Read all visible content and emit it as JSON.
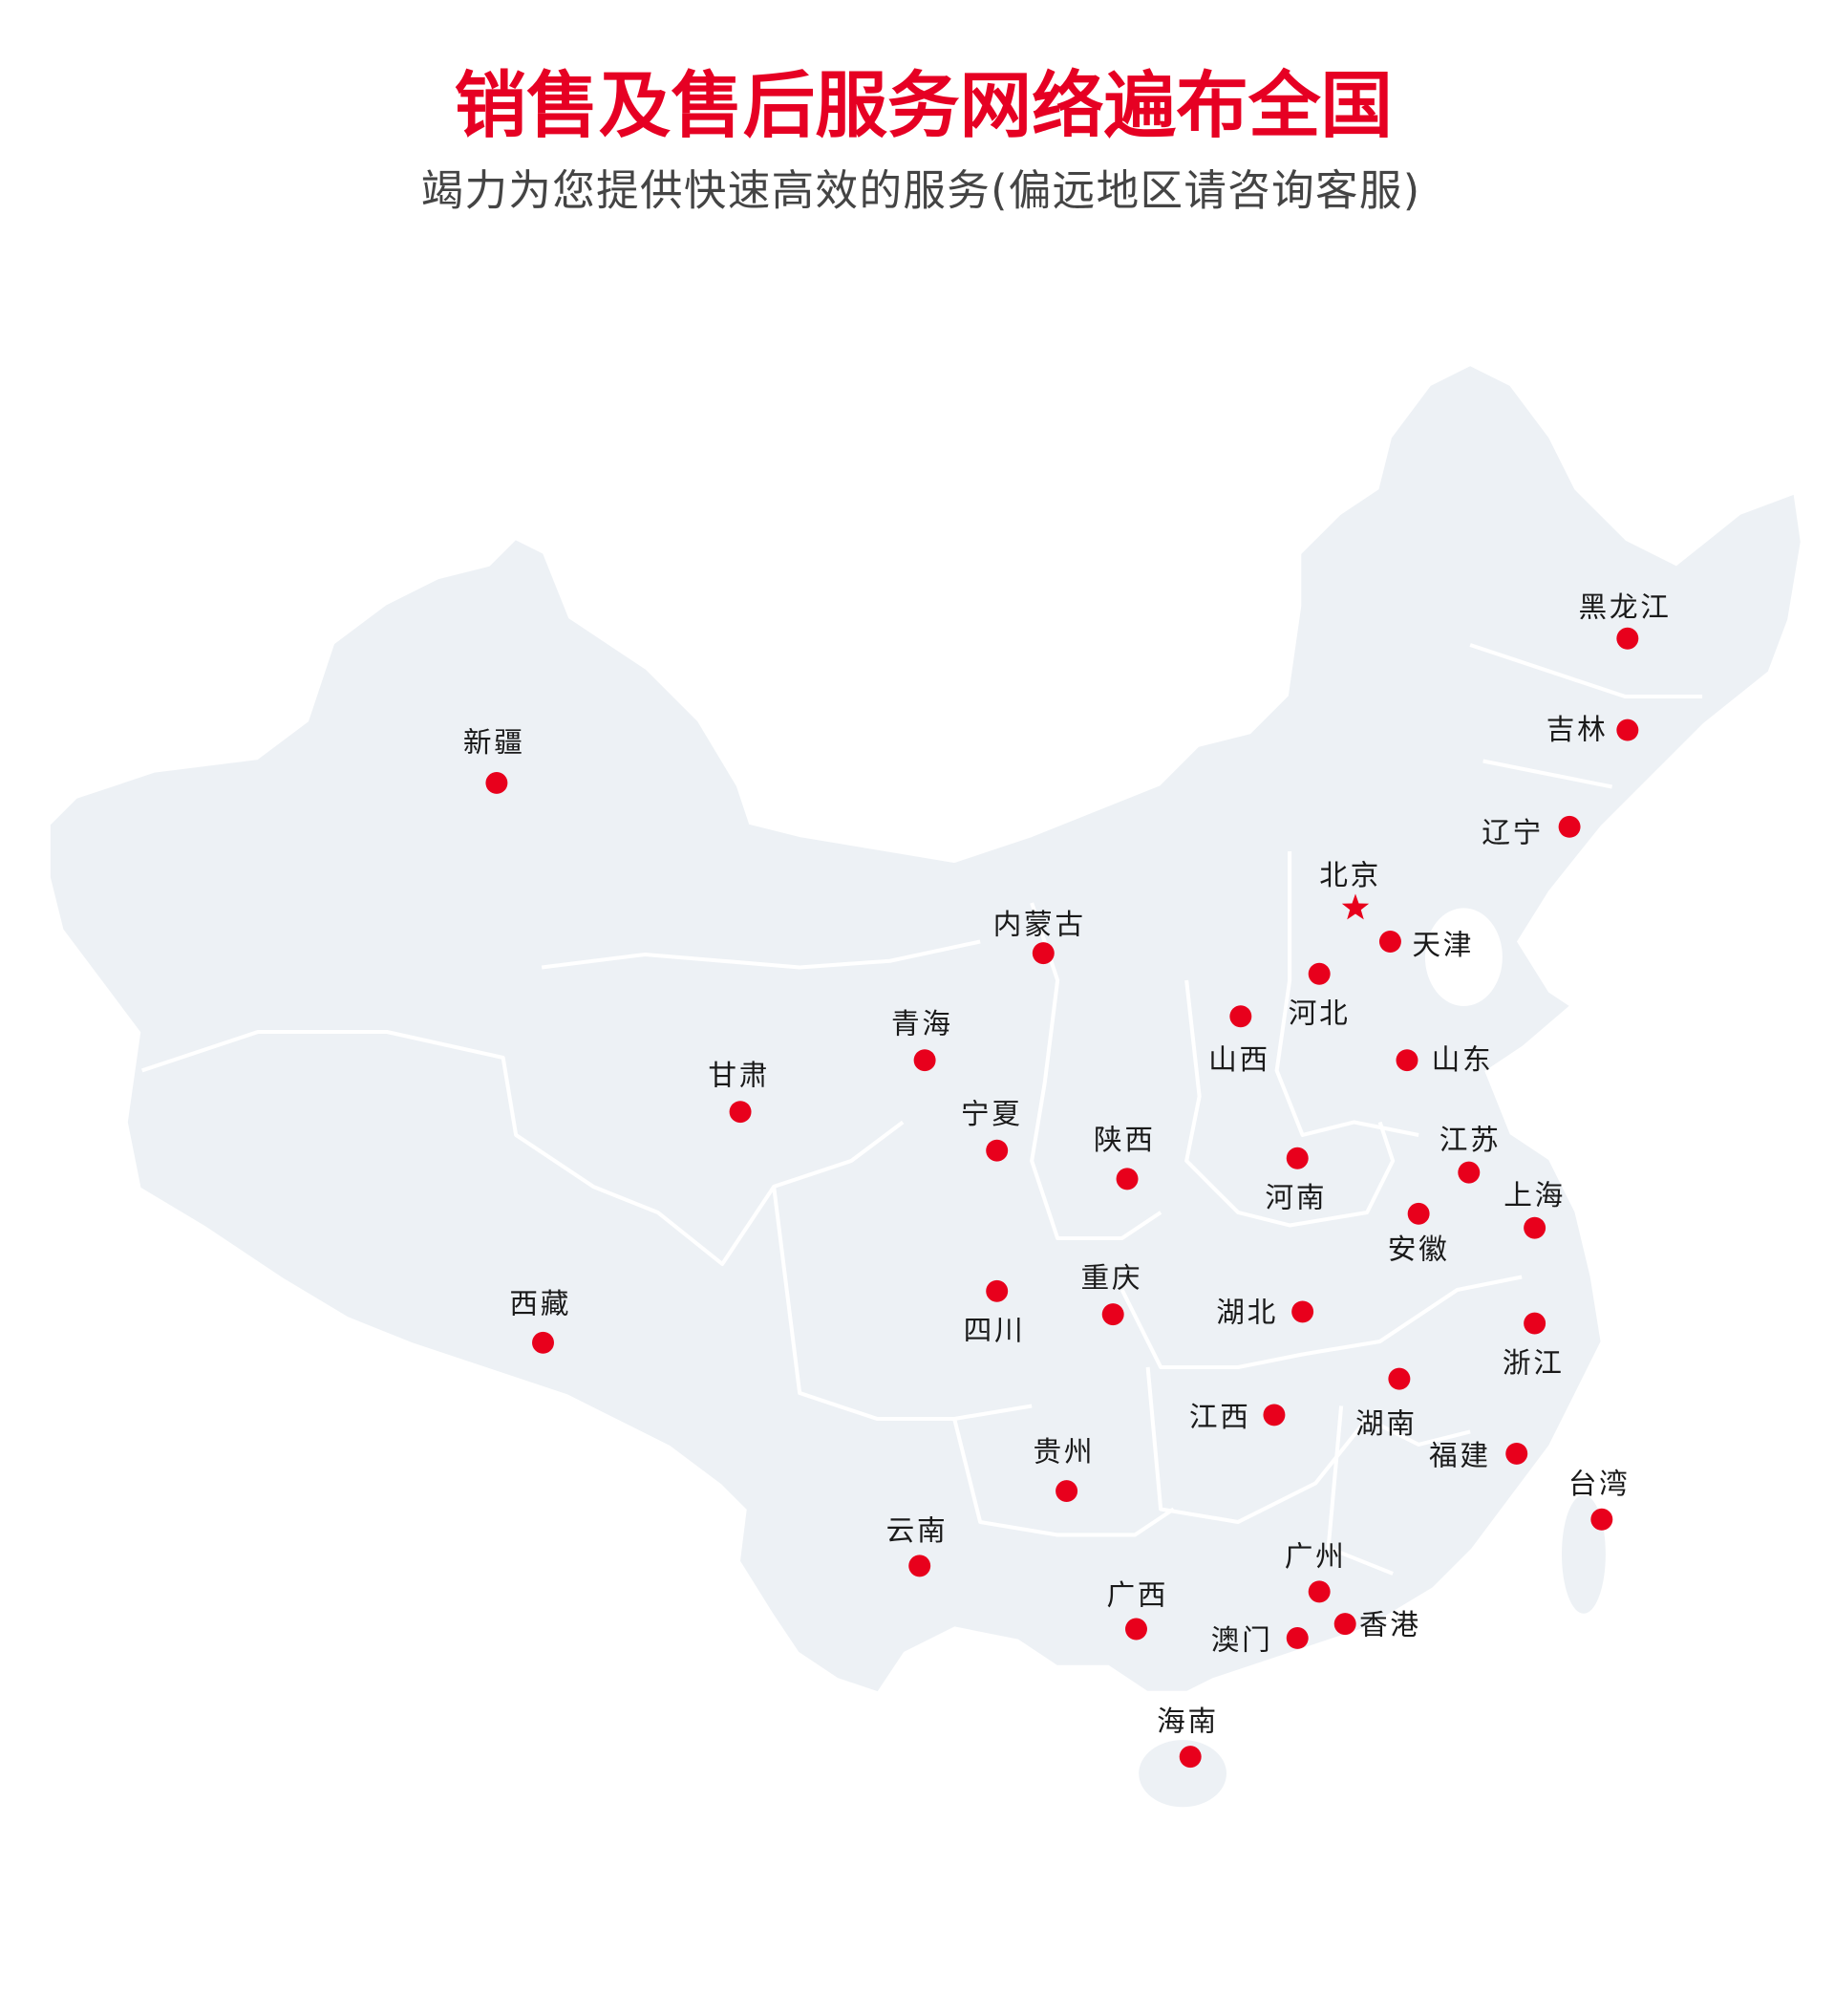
{
  "header": {
    "title": "销售及售后服务网络遍布全国",
    "subtitle": "竭力为您提供快速高效的服务(偏远地区请咨询客服)"
  },
  "colors": {
    "title": "#e60023",
    "marker": "#e8001c",
    "map_fill": "#edf1f5",
    "border": "#ffffff"
  },
  "map": {
    "capital_icon": "star-icon",
    "marker_icon": "dot-icon",
    "locations": [
      "黑龙江",
      "吉林",
      "辽宁",
      "北京",
      "天津",
      "河北",
      "山西",
      "山东",
      "内蒙古",
      "青海",
      "甘肃",
      "宁夏",
      "陕西",
      "河南",
      "江苏",
      "上海",
      "安徽",
      "新疆",
      "西藏",
      "四川",
      "重庆",
      "湖北",
      "浙江",
      "湖南",
      "江西",
      "福建",
      "台湾",
      "贵州",
      "云南",
      "广州",
      "广西",
      "香港",
      "澳门",
      "海南"
    ]
  }
}
